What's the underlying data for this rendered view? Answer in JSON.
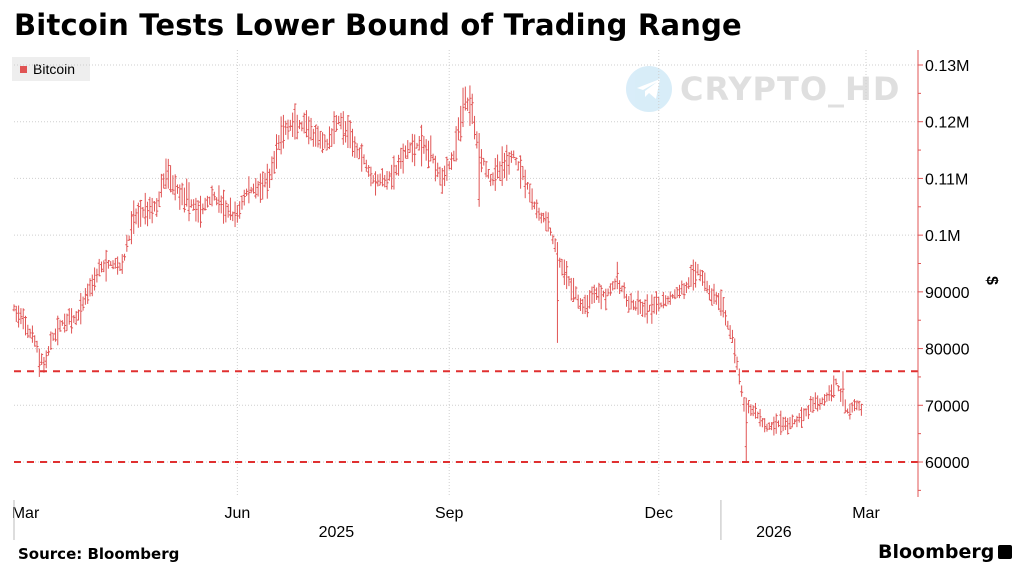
{
  "title": "Bitcoin Tests Lower Bound of Trading Range",
  "legend": {
    "label": "Bitcoin",
    "color": "#e05454"
  },
  "watermark": "CRYPTO_HD",
  "source": "Source: Bloomberg",
  "brand": "Bloomberg",
  "chart_data": {
    "type": "ohlc",
    "title": "Bitcoin Tests Lower Bound of Trading Range",
    "series_name": "Bitcoin",
    "color": "#e05454",
    "y_unit_label": "$",
    "ylim": [
      53000,
      133000
    ],
    "y_ticks": [
      {
        "value": 130000,
        "label": "0.13M"
      },
      {
        "value": 120000,
        "label": "0.12M"
      },
      {
        "value": 110000,
        "label": "0.11M"
      },
      {
        "value": 100000,
        "label": "0.1M"
      },
      {
        "value": 90000,
        "label": "90000"
      },
      {
        "value": 80000,
        "label": "80000"
      },
      {
        "value": 70000,
        "label": "70000"
      },
      {
        "value": 60000,
        "label": "60000"
      }
    ],
    "x_range": [
      0,
      370
    ],
    "x_ticks": [
      {
        "day": 5,
        "label": "Mar"
      },
      {
        "day": 97,
        "label": "Jun"
      },
      {
        "day": 189,
        "label": "Sep"
      },
      {
        "day": 280,
        "label": "Dec"
      },
      {
        "day": 370,
        "label": "Mar"
      }
    ],
    "x_gridlines": [
      97,
      189,
      280,
      370
    ],
    "year_labels": [
      {
        "day": 140,
        "label": "2025"
      },
      {
        "day": 330,
        "label": "2026"
      }
    ],
    "year_separator_days": [
      0,
      307
    ],
    "reference_lines": [
      {
        "value": 76000,
        "style": "dashed"
      },
      {
        "value": 60000,
        "style": "dashed"
      }
    ],
    "trend": [
      [
        0,
        87000
      ],
      [
        5,
        84000
      ],
      [
        10,
        80500
      ],
      [
        13,
        77000
      ],
      [
        17,
        82000
      ],
      [
        22,
        85000
      ],
      [
        27,
        85000
      ],
      [
        32,
        90000
      ],
      [
        37,
        94000
      ],
      [
        42,
        95000
      ],
      [
        47,
        94500
      ],
      [
        52,
        103000
      ],
      [
        57,
        104500
      ],
      [
        62,
        105000
      ],
      [
        66,
        111000
      ],
      [
        71,
        108000
      ],
      [
        76,
        106000
      ],
      [
        81,
        104000
      ],
      [
        86,
        107000
      ],
      [
        91,
        105000
      ],
      [
        96,
        103000
      ],
      [
        101,
        107500
      ],
      [
        106,
        108500
      ],
      [
        111,
        109500
      ],
      [
        116,
        118000
      ],
      [
        121,
        119500
      ],
      [
        126,
        119000
      ],
      [
        131,
        117000
      ],
      [
        136,
        116000
      ],
      [
        141,
        120500
      ],
      [
        146,
        117000
      ],
      [
        151,
        114000
      ],
      [
        156,
        110000
      ],
      [
        161,
        109500
      ],
      [
        166,
        111500
      ],
      [
        171,
        115000
      ],
      [
        176,
        116000
      ],
      [
        181,
        114500
      ],
      [
        186,
        110000
      ],
      [
        191,
        114000
      ],
      [
        196,
        124000
      ],
      [
        199,
        122000
      ],
      [
        202,
        115000
      ],
      [
        207,
        110000
      ],
      [
        212,
        112000
      ],
      [
        217,
        114000
      ],
      [
        222,
        110000
      ],
      [
        227,
        104000
      ],
      [
        232,
        102000
      ],
      [
        237,
        95000
      ],
      [
        242,
        91000
      ],
      [
        247,
        87000
      ],
      [
        252,
        90000
      ],
      [
        257,
        89500
      ],
      [
        262,
        92000
      ],
      [
        267,
        88000
      ],
      [
        272,
        87000
      ],
      [
        277,
        87000
      ],
      [
        282,
        88000
      ],
      [
        287,
        89500
      ],
      [
        292,
        91000
      ],
      [
        297,
        94000
      ],
      [
        302,
        90000
      ],
      [
        307,
        88000
      ],
      [
        312,
        82000
      ],
      [
        317,
        70000
      ],
      [
        322,
        69000
      ],
      [
        327,
        66000
      ],
      [
        332,
        67000
      ],
      [
        337,
        66500
      ],
      [
        342,
        68000
      ],
      [
        347,
        70000
      ],
      [
        352,
        71000
      ],
      [
        357,
        74000
      ],
      [
        362,
        69000
      ],
      [
        366,
        70000
      ],
      [
        370,
        69000
      ]
    ]
  }
}
